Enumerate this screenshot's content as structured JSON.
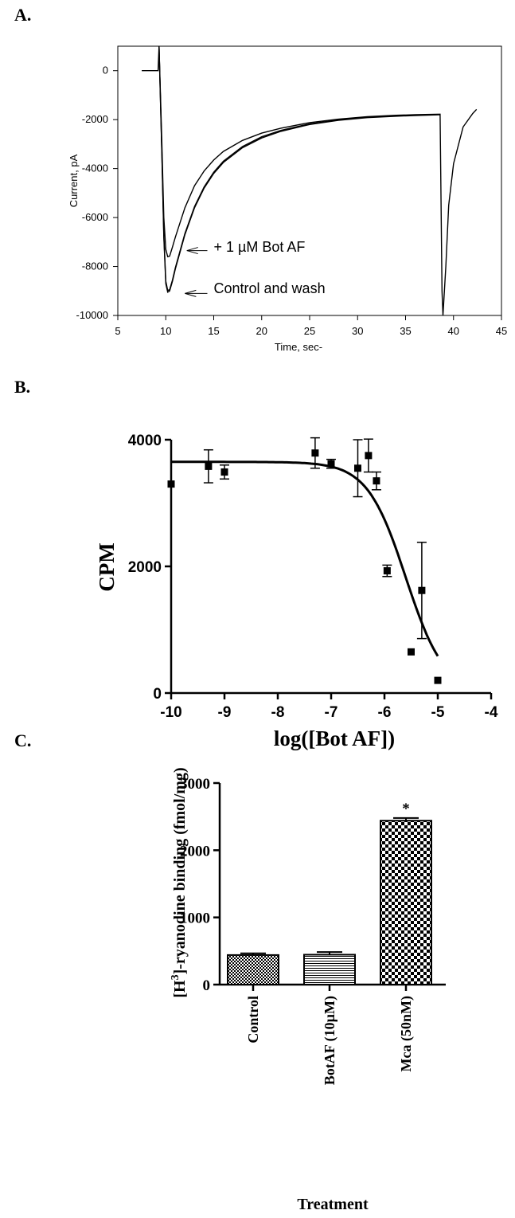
{
  "panels": {
    "a": "A.",
    "b": "B.",
    "c": "C."
  },
  "chart_data": [
    {
      "type": "line",
      "xlabel": "Time, sec-",
      "ylabel": "Current, pA",
      "xlim": [
        5,
        45
      ],
      "ylim": [
        -10000,
        1000
      ],
      "x_ticks": [
        "5",
        "10",
        "15",
        "20",
        "25",
        "30",
        "35",
        "40",
        "45"
      ],
      "y_ticks": [
        "0",
        "-2000",
        "-4000",
        "-6000",
        "-8000",
        "-10000"
      ],
      "grid": false,
      "series": [
        {
          "x": [
            7.5,
            8.8,
            9.2,
            9.3,
            9.6,
            9.8,
            10.0,
            10.2,
            10.4,
            10.7,
            11.0,
            11.5,
            12,
            13,
            14,
            15,
            16,
            18,
            20,
            22,
            25,
            28,
            31,
            34,
            36,
            38.6,
            38.8,
            38.9,
            39.2,
            39.5,
            40,
            41,
            42,
            42.4
          ],
          "y": [
            0,
            0,
            0,
            1000,
            -3000,
            -6000,
            -7300,
            -7600,
            -7580,
            -7200,
            -6800,
            -6200,
            -5600,
            -4700,
            -4100,
            -3650,
            -3300,
            -2850,
            -2550,
            -2350,
            -2120,
            -1980,
            -1880,
            -1820,
            -1800,
            -1780,
            -9000,
            -10000,
            -8000,
            -5500,
            -3800,
            -2300,
            -1750,
            -1580
          ]
        },
        {
          "x": [
            9.3,
            9.6,
            9.8,
            10.0,
            10.2,
            10.4,
            10.7,
            11.0,
            11.5,
            12,
            13,
            14,
            15,
            16,
            18,
            20,
            22,
            25,
            28,
            31,
            34,
            36,
            38.6
          ],
          "y": [
            1000,
            -3500,
            -6800,
            -8700,
            -9050,
            -9000,
            -8600,
            -8100,
            -7400,
            -6700,
            -5600,
            -4800,
            -4200,
            -3750,
            -3150,
            -2750,
            -2480,
            -2200,
            -2030,
            -1920,
            -1860,
            -1830,
            -1800
          ]
        },
        {
          "x": [
            9.3,
            9.6,
            9.8,
            10.0,
            10.2,
            10.4,
            10.7,
            11.0,
            11.5,
            12,
            13,
            14,
            15,
            16,
            18,
            20,
            22,
            25,
            28,
            31,
            34,
            36,
            38.6
          ],
          "y": [
            1000,
            -3400,
            -6700,
            -8600,
            -8980,
            -8950,
            -8550,
            -8050,
            -7350,
            -6650,
            -5550,
            -4750,
            -4150,
            -3700,
            -3100,
            -2700,
            -2440,
            -2170,
            -2010,
            -1900,
            -1845,
            -1815,
            -1790
          ]
        }
      ],
      "annotations": [
        {
          "text": "+ 1 µM Bot AF",
          "x": 15,
          "y": -7200,
          "arrow_to": [
            12.2,
            -7350
          ]
        },
        {
          "text": "Control and wash",
          "x": 15,
          "y": -8900,
          "arrow_to": [
            12.0,
            -9100
          ]
        }
      ]
    },
    {
      "type": "scatter",
      "xlabel": "log([Bot AF])",
      "ylabel": "CPM",
      "xlim": [
        -10,
        -4
      ],
      "ylim": [
        0,
        4000
      ],
      "x_ticks": [
        "-10",
        "-9",
        "-8",
        "-7",
        "-6",
        "-5",
        "-4"
      ],
      "y_ticks": [
        "0",
        "2000",
        "4000"
      ],
      "points": [
        {
          "x": -10.0,
          "y": 3300,
          "err": 0
        },
        {
          "x": -9.3,
          "y": 3580,
          "err": 260
        },
        {
          "x": -9.0,
          "y": 3490,
          "err": 110
        },
        {
          "x": -7.3,
          "y": 3790,
          "err": 240
        },
        {
          "x": -7.0,
          "y": 3620,
          "err": 70
        },
        {
          "x": -6.5,
          "y": 3550,
          "err": 450
        },
        {
          "x": -6.3,
          "y": 3750,
          "err": 260
        },
        {
          "x": -6.15,
          "y": 3350,
          "err": 140
        },
        {
          "x": -5.95,
          "y": 1930,
          "err": 90
        },
        {
          "x": -5.5,
          "y": 650,
          "err": 0
        },
        {
          "x": -5.3,
          "y": 1620,
          "err": 760
        },
        {
          "x": -5.0,
          "y": 200,
          "err": 0
        }
      ],
      "fit": {
        "model": "sigmoid",
        "top": 3650,
        "bottom": 0,
        "logIC50": -5.6,
        "hill": 1.2,
        "x_range": [
          -10,
          -5
        ]
      }
    },
    {
      "type": "bar",
      "xlabel": "Treatment",
      "ylabel": "[H³]-ryanodine binding (fmol/mg)",
      "ylim": [
        0,
        3000
      ],
      "y_ticks": [
        "0",
        "1000",
        "2000",
        "3000"
      ],
      "categories": [
        "Control",
        "BotAF (10µM)",
        "Mca (50nM)"
      ],
      "values": [
        440,
        445,
        2440
      ],
      "errors": [
        25,
        40,
        40
      ],
      "annotations": [
        {
          "text": "*",
          "category": "Mca (50nM)"
        }
      ]
    }
  ]
}
